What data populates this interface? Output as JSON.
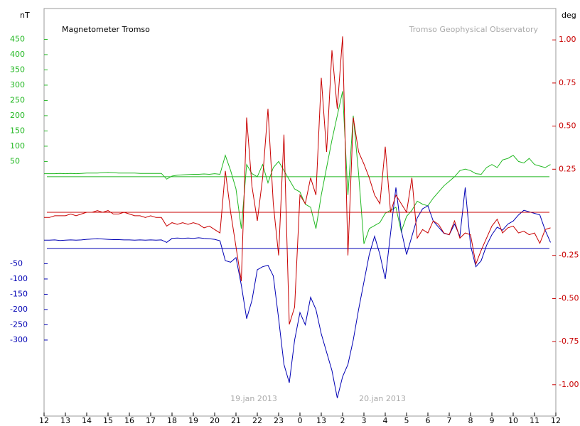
{
  "chart_data": {
    "type": "line",
    "title": "Magnetometer Tromso",
    "subtitle": "Tromso Geophysical Observatory",
    "y_label": "nT",
    "y2_label": "deg",
    "annotations": [
      "19.jan 2013",
      "20.jan 2013"
    ],
    "xlim": [
      0,
      24
    ],
    "xticks": [
      {
        "value": 0,
        "label": "12"
      },
      {
        "value": 1,
        "label": "13"
      },
      {
        "value": 2,
        "label": "14"
      },
      {
        "value": 3,
        "label": "15"
      },
      {
        "value": 4,
        "label": "16"
      },
      {
        "value": 5,
        "label": "17"
      },
      {
        "value": 6,
        "label": "18"
      },
      {
        "value": 7,
        "label": "19"
      },
      {
        "value": 8,
        "label": "20"
      },
      {
        "value": 9,
        "label": "21"
      },
      {
        "value": 10,
        "label": "22"
      },
      {
        "value": 11,
        "label": "23"
      },
      {
        "value": 12,
        "label": "0"
      },
      13,
      {
        "value": 14,
        "label": "2"
      },
      {
        "value": 15,
        "label": "3"
      },
      {
        "value": 16,
        "label": "4"
      },
      {
        "value": 17,
        "label": "5"
      },
      {
        "value": 18,
        "label": "6"
      },
      {
        "value": 19,
        "label": "7"
      },
      {
        "value": 20,
        "label": "8"
      },
      {
        "value": 21,
        "label": "9"
      },
      {
        "value": 22,
        "label": "10"
      },
      {
        "value": 23,
        "label": "11"
      },
      {
        "value": 24,
        "label": "12"
      }
    ],
    "x": [
      0,
      0.25,
      0.5,
      0.75,
      1,
      1.25,
      1.5,
      1.75,
      2,
      2.25,
      2.5,
      2.75,
      3,
      3.25,
      3.5,
      3.75,
      4,
      4.25,
      4.5,
      4.75,
      5,
      5.25,
      5.5,
      5.75,
      6,
      6.25,
      6.5,
      6.75,
      7,
      7.25,
      7.5,
      7.75,
      8,
      8.25,
      8.5,
      8.75,
      9,
      9.25,
      9.5,
      9.75,
      10,
      10.25,
      10.5,
      10.75,
      11,
      11.25,
      11.5,
      11.75,
      12,
      12.25,
      12.5,
      12.75,
      13,
      13.25,
      13.5,
      13.75,
      14,
      14.25,
      14.5,
      14.75,
      15,
      15.25,
      15.5,
      15.75,
      16,
      16.25,
      16.5,
      16.75,
      17,
      17.25,
      17.5,
      17.75,
      18,
      18.25,
      18.5,
      18.75,
      19,
      19.25,
      19.5,
      19.75,
      20,
      20.25,
      20.5,
      20.75,
      21,
      21.25,
      21.5,
      21.75,
      22,
      22.25,
      22.5,
      22.75,
      23,
      23.25,
      23.5,
      23.75
    ],
    "series": [
      {
        "color": "#22b822",
        "axis": "y",
        "ylim": [
          -784,
          551
        ],
        "yticks": [
          50,
          100,
          150,
          200,
          250,
          300,
          350,
          400,
          450
        ],
        "values": [
          10,
          10,
          10,
          11,
          10,
          11,
          10,
          11,
          12,
          12,
          12,
          13,
          14,
          13,
          12,
          12,
          12,
          12,
          11,
          11,
          11,
          11,
          11,
          -8,
          2,
          5,
          6,
          7,
          8,
          8,
          9,
          8,
          10,
          8,
          70,
          20,
          -40,
          -170,
          40,
          10,
          0,
          40,
          -20,
          30,
          50,
          20,
          -10,
          -40,
          -50,
          -90,
          -100,
          -170,
          -60,
          30,
          120,
          200,
          280,
          -60,
          200,
          10,
          -220,
          -170,
          -160,
          -150,
          -120,
          -110,
          -100,
          -180,
          -130,
          -110,
          -80,
          -90,
          -95,
          -70,
          -50,
          -30,
          -15,
          0,
          20,
          25,
          20,
          10,
          8,
          30,
          40,
          30,
          55,
          60,
          70,
          50,
          45,
          60,
          40,
          35,
          30,
          40
        ]
      },
      {
        "color": "#0000b4",
        "axis": "y",
        "ylim": [
          -549,
          786
        ],
        "yticks": [
          -50,
          -100,
          -150,
          -200,
          -250,
          -300
        ],
        "values": [
          27,
          27,
          28,
          26,
          27,
          28,
          27,
          28,
          30,
          31,
          32,
          31,
          30,
          29,
          29,
          28,
          28,
          27,
          28,
          27,
          28,
          27,
          28,
          20,
          33,
          34,
          33,
          34,
          33,
          35,
          33,
          32,
          30,
          25,
          -40,
          -45,
          -30,
          -120,
          -230,
          -170,
          -70,
          -60,
          -55,
          -90,
          -230,
          -380,
          -440,
          -300,
          -210,
          -250,
          -160,
          -200,
          -280,
          -340,
          -400,
          -490,
          -420,
          -380,
          -300,
          -200,
          -110,
          -20,
          40,
          -20,
          -100,
          50,
          200,
          60,
          -20,
          40,
          100,
          130,
          140,
          90,
          70,
          50,
          45,
          80,
          40,
          200,
          10,
          -60,
          -40,
          10,
          45,
          70,
          60,
          80,
          90,
          110,
          125,
          120,
          115,
          110,
          60,
          20
        ]
      },
      {
        "color": "#c80000",
        "axis": "y2",
        "ylim": [
          -1.182,
          1.182
        ],
        "yticks": [
          {
            "value": 1,
            "label": "1.00"
          },
          0.75,
          {
            "value": 0.5,
            "label": "0.50"
          },
          0.25,
          -0.25,
          {
            "value": -0.5,
            "label": "-0.50"
          },
          -0.75,
          {
            "value": -1,
            "label": "-1.00"
          }
        ],
        "values": [
          -0.03,
          -0.03,
          -0.02,
          -0.02,
          -0.02,
          -0.01,
          -0.02,
          -0.01,
          0.0,
          0.0,
          0.01,
          0.0,
          0.01,
          -0.01,
          -0.01,
          0.0,
          -0.01,
          -0.02,
          -0.02,
          -0.03,
          -0.02,
          -0.03,
          -0.03,
          -0.08,
          -0.06,
          -0.07,
          -0.06,
          -0.07,
          -0.06,
          -0.07,
          -0.09,
          -0.08,
          -0.1,
          -0.12,
          0.24,
          0.0,
          -0.2,
          -0.4,
          0.55,
          0.15,
          -0.05,
          0.2,
          0.6,
          0.05,
          -0.25,
          0.45,
          -0.65,
          -0.55,
          0.1,
          0.05,
          0.2,
          0.1,
          0.78,
          0.35,
          0.94,
          0.6,
          1.02,
          -0.25,
          0.55,
          0.35,
          0.28,
          0.2,
          0.1,
          0.05,
          0.38,
          0.0,
          0.1,
          0.05,
          0.0,
          0.2,
          -0.15,
          -0.1,
          -0.12,
          -0.05,
          -0.07,
          -0.12,
          -0.13,
          -0.05,
          -0.15,
          -0.12,
          -0.13,
          -0.3,
          -0.22,
          -0.15,
          -0.08,
          -0.04,
          -0.12,
          -0.09,
          -0.08,
          -0.12,
          -0.11,
          -0.13,
          -0.12,
          -0.18,
          -0.1,
          -0.09
        ]
      }
    ]
  }
}
